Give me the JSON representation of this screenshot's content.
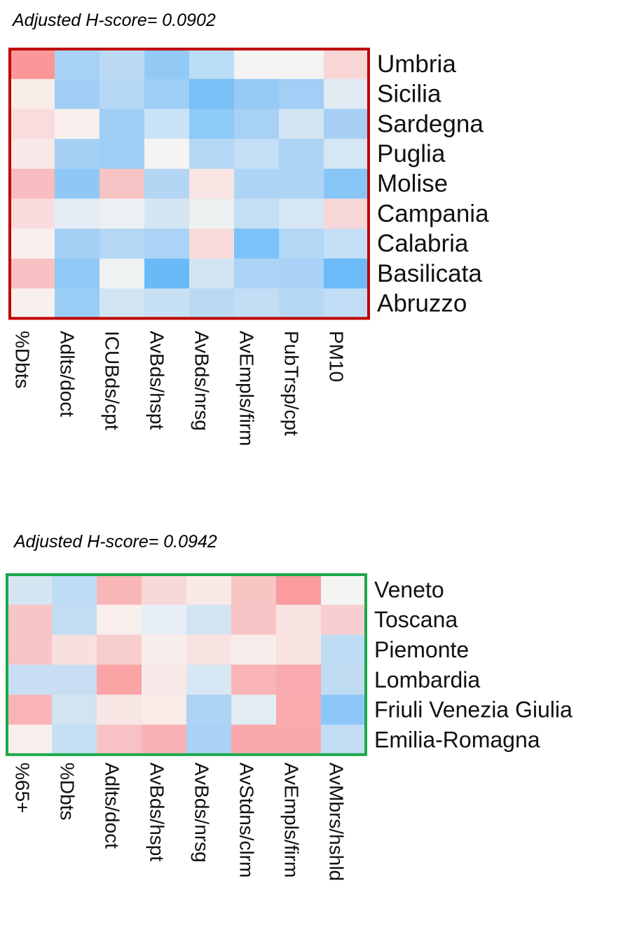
{
  "chart_data": [
    {
      "type": "heatmap",
      "title": "Adjusted H-score= 0.0902",
      "border_color": "#C00000",
      "rows": [
        "Umbria",
        "Sicilia",
        "Sardegna",
        "Puglia",
        "Molise",
        "Campania",
        "Calabria",
        "Basilicata",
        "Abruzzo"
      ],
      "columns": [
        "%Dbts",
        "Adlts/doct",
        "ICUBds/cpt",
        "AvBds/hspt",
        "AvBds/nrsg",
        "AvEmpls/firm",
        "PubTrsp/cpt",
        "PM10"
      ],
      "colors": [
        [
          "#FB9799",
          "#A8D2F5",
          "#BBDAF1",
          "#93CAF5",
          "#BBDCF5",
          "#F3F3F3",
          "#F3F3F3",
          "#F8D6D6"
        ],
        [
          "#F9EDEA",
          "#9FCDF5",
          "#B5D7F5",
          "#9ECDF5",
          "#79C0F7",
          "#98CAF6",
          "#A3CFF6",
          "#E0EBF4"
        ],
        [
          "#F9DCDE",
          "#F8EFEC",
          "#9ECDF5",
          "#CAE2F5",
          "#8ECAF7",
          "#A7D1F5",
          "#D3E4F3",
          "#A7CFF5"
        ],
        [
          "#F8E9E8",
          "#A6D1F5",
          "#9ECEF5",
          "#F4F4F3",
          "#B5D7F5",
          "#C3DEF5",
          "#ADD4F5",
          "#D6E6F4"
        ],
        [
          "#F9BCC0",
          "#8FC8F6",
          "#F7C3C4",
          "#B4D6F5",
          "#F8E5E4",
          "#AED5F5",
          "#ADD4F5",
          "#88C5F7"
        ],
        [
          "#F9DADD",
          "#E3EDF3",
          "#EDF0F2",
          "#D5E5F4",
          "#EDF0F1",
          "#C4DEF4",
          "#D7E6F3",
          "#F7D7D8"
        ],
        [
          "#F8F0EE",
          "#A5D0F5",
          "#B4D7F4",
          "#ABD3F5",
          "#F8DCDC",
          "#7BC3F8",
          "#B3D7F5",
          "#C3DEF5"
        ],
        [
          "#F9C0C3",
          "#90C9F7",
          "#EEF2F3",
          "#6ABAF8",
          "#D1E4F4",
          "#ABD3F5",
          "#A9D1F5",
          "#6CBBF8"
        ],
        [
          "#F7F0ED",
          "#9ACDF5",
          "#D1E5F4",
          "#C8E0F4",
          "#BADAF4",
          "#C3DEF4",
          "#B6D8F5",
          "#C1DDF5"
        ]
      ]
    },
    {
      "type": "heatmap",
      "title": "Adjusted H-score= 0.0942",
      "border_color": "#1BA94A",
      "rows": [
        "Veneto",
        "Toscana",
        "Piemonte",
        "Lombardia",
        "Friuli Venezia Giulia",
        "Emilia-Romagna"
      ],
      "columns": [
        "%65+",
        "%Dbts",
        "Adlts/doct",
        "AvBds/hspt",
        "AvBds/nrsg",
        "AvStdns/clrm",
        "AvEmpls/firm",
        "AvMbrs/hshld"
      ],
      "colors": [
        [
          "#D5E5F2",
          "#BEDCF4",
          "#F8B6B8",
          "#F8D8D8",
          "#F8E9E7",
          "#F8C4C4",
          "#FA9B9D",
          "#F4F4F3"
        ],
        [
          "#F8C5C6",
          "#C2DDF3",
          "#F8EFEC",
          "#E7EEF5",
          "#D3E4F3",
          "#F8C3C4",
          "#F8E3E2",
          "#F8CFD0"
        ],
        [
          "#F8C4C6",
          "#F8E0DF",
          "#F8CDCE",
          "#F8EDEA",
          "#F8E3E2",
          "#F8EDEA",
          "#F8E1E1",
          "#BFDCF5"
        ],
        [
          "#C8DFF3",
          "#C8DFF3",
          "#FAA4A6",
          "#F8EAE8",
          "#D7E7F3",
          "#F9B4B6",
          "#F9AAAE",
          "#C0DCF3"
        ],
        [
          "#F9B4B8",
          "#D0E4F3",
          "#F8E6E4",
          "#F8EBE8",
          "#ADD3F5",
          "#E2ECF3",
          "#F9AAAD",
          "#8CC7F7"
        ],
        [
          "#F8EFEC",
          "#C5DFF4",
          "#F8C2C4",
          "#F9B2B5",
          "#A9D2F6",
          "#F9A9AC",
          "#F9A9AC",
          "#C2DDF3"
        ]
      ]
    }
  ]
}
